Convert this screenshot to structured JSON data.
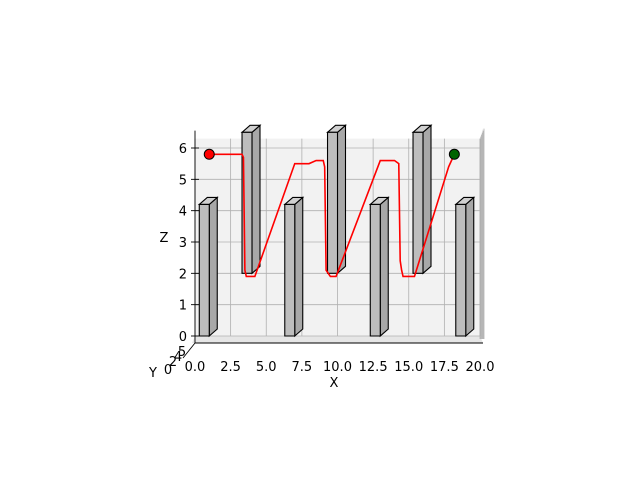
{
  "chart_data": {
    "type": "line3d",
    "title": "",
    "xlabel": "X",
    "ylabel": "Y",
    "zlabel": "Z",
    "xlim": [
      0,
      20
    ],
    "zlim": [
      0,
      6.3
    ],
    "x_ticks": [
      "0.0",
      "2.5",
      "5.0",
      "7.5",
      "10.0",
      "12.5",
      "15.0",
      "17.5",
      "20.0"
    ],
    "x_tick_values": [
      0,
      2.5,
      5,
      7.5,
      10,
      12.5,
      15,
      17.5,
      20
    ],
    "z_ticks": [
      "0",
      "1",
      "2",
      "3",
      "4",
      "5",
      "6"
    ],
    "z_tick_values": [
      0,
      1,
      2,
      3,
      4,
      5,
      6
    ],
    "y_ticks": [
      "0",
      "2",
      "4",
      "5"
    ],
    "grid": true,
    "obstacles": [
      {
        "x0": 0.3,
        "x1": 1.0,
        "z0": 0,
        "z1": 4.2
      },
      {
        "x0": 3.3,
        "x1": 4.0,
        "z0": 2.0,
        "z1": 6.5
      },
      {
        "x0": 6.3,
        "x1": 7.0,
        "z0": 0,
        "z1": 4.2
      },
      {
        "x0": 9.3,
        "x1": 10.0,
        "z0": 2.0,
        "z1": 6.5
      },
      {
        "x0": 12.3,
        "x1": 13.0,
        "z0": 0,
        "z1": 4.2
      },
      {
        "x0": 15.3,
        "x1": 16.0,
        "z0": 2.0,
        "z1": 6.5
      },
      {
        "x0": 18.3,
        "x1": 19.0,
        "z0": 0,
        "z1": 4.2
      }
    ],
    "path": {
      "x": [
        1.0,
        3.3,
        3.4,
        3.5,
        3.6,
        4.2,
        7.0,
        8.0,
        8.5,
        9.0,
        9.1,
        9.2,
        9.5,
        9.9,
        13.0,
        14.0,
        14.3,
        14.4,
        14.5,
        14.6,
        15.4,
        17.8,
        18.2
      ],
      "z": [
        5.8,
        5.8,
        5.7,
        2.1,
        1.9,
        1.9,
        5.5,
        5.5,
        5.6,
        5.6,
        5.4,
        2.1,
        1.9,
        1.9,
        5.6,
        5.6,
        5.5,
        2.4,
        2.1,
        1.9,
        1.9,
        5.4,
        5.8
      ]
    },
    "start": {
      "x": 1.0,
      "z": 5.8,
      "color": "#ff0000"
    },
    "goal": {
      "x": 18.2,
      "z": 5.8,
      "color": "#006400"
    },
    "path_color": "#ff0000"
  }
}
